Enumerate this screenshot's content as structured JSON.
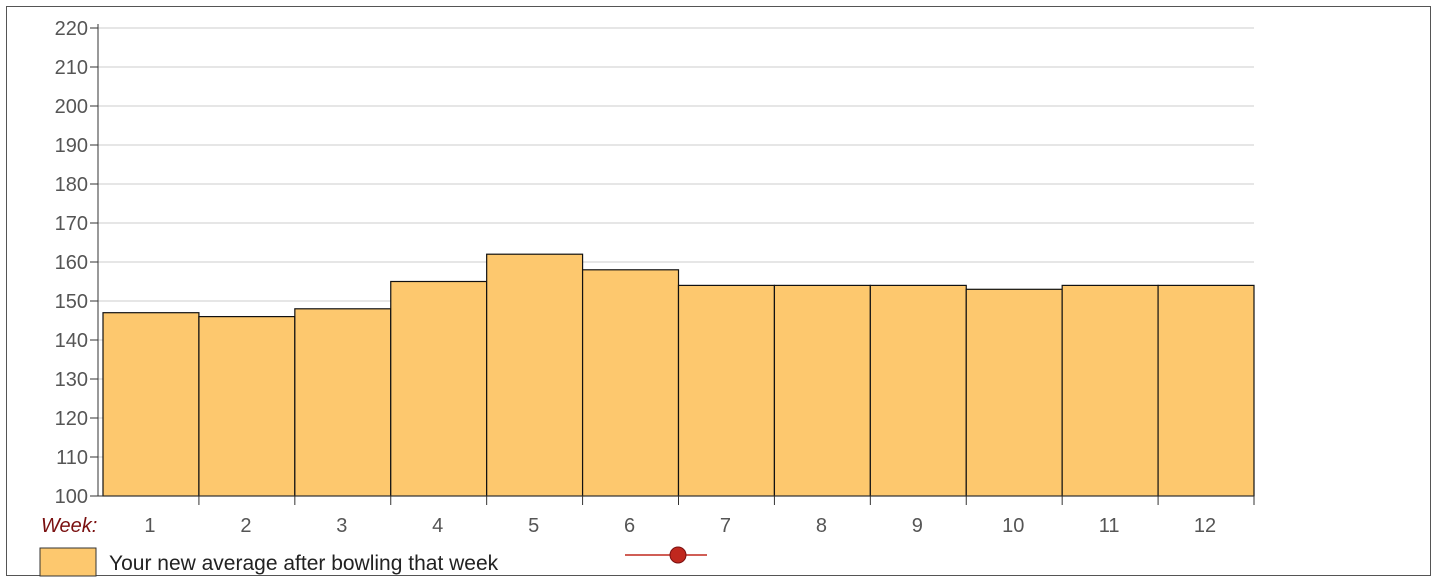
{
  "chart_data": {
    "type": "bar",
    "title": "",
    "xlabel": "Week:",
    "ylabel": "",
    "categories": [
      "1",
      "2",
      "3",
      "4",
      "5",
      "6",
      "7",
      "8",
      "9",
      "10",
      "11",
      "12"
    ],
    "values": [
      147,
      146,
      148,
      155,
      162,
      158,
      154,
      154,
      154,
      153,
      154,
      154
    ],
    "ylim": [
      100,
      220
    ],
    "yticks": [
      100,
      110,
      120,
      130,
      140,
      150,
      160,
      170,
      180,
      190,
      200,
      210,
      220
    ],
    "grid": true,
    "bar_color": "#fdc86e",
    "bar_edge_color": "#111111",
    "legend": {
      "placement": "bottom-left",
      "entries": [
        {
          "label": "Your new average after bowling that week",
          "marker": "box",
          "color": "#fdc86e"
        },
        {
          "label": "",
          "marker": "line-dot",
          "color": "#c0281e"
        }
      ]
    }
  }
}
